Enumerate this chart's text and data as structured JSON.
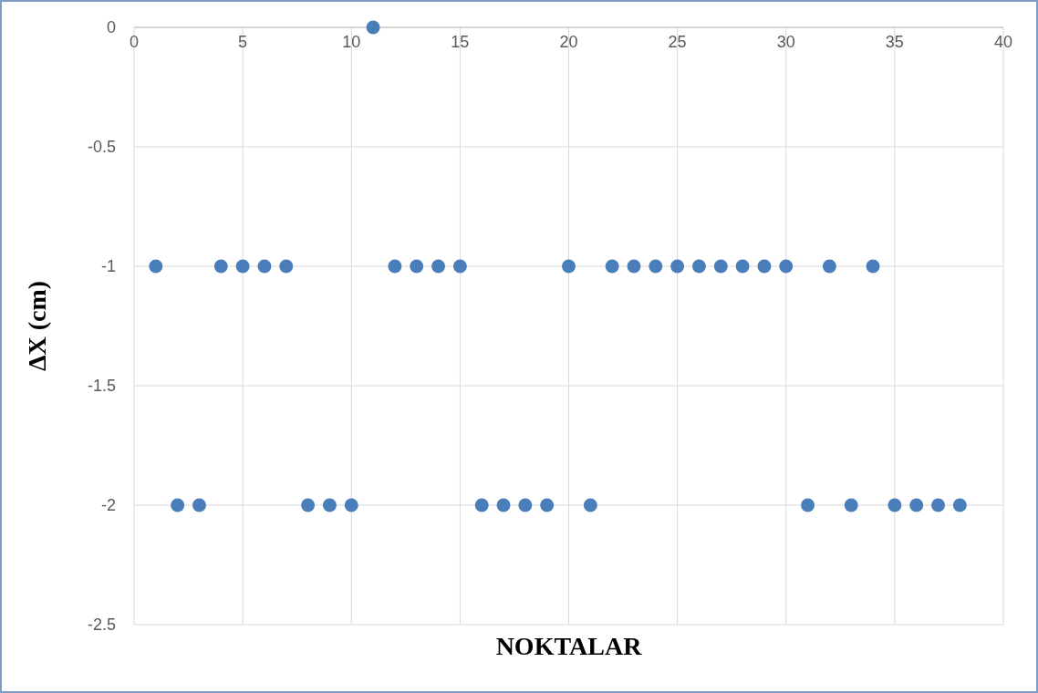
{
  "chart_data": {
    "type": "scatter",
    "xlabel": "NOKTALAR",
    "ylabel": "ΔX (cm)",
    "x": [
      1,
      2,
      3,
      4,
      5,
      6,
      7,
      8,
      9,
      10,
      11,
      12,
      13,
      14,
      15,
      16,
      17,
      18,
      19,
      20,
      21,
      22,
      23,
      24,
      25,
      26,
      27,
      28,
      29,
      30,
      31,
      32,
      33,
      34,
      35,
      36,
      37,
      38
    ],
    "series": [
      {
        "color": "#4a7ebb",
        "values": [
          -1,
          -2,
          -2,
          -1,
          -1,
          -1,
          -1,
          -2,
          -2,
          -2,
          0,
          -1,
          -1,
          -1,
          -1,
          -2,
          -2,
          -2,
          -2,
          -1,
          -2,
          -1,
          -1,
          -1,
          -1,
          -1,
          -1,
          -1,
          -1,
          -1,
          -2,
          -1,
          -2,
          -1,
          -2,
          -2,
          -2,
          -2
        ]
      }
    ],
    "xlim": [
      0,
      40
    ],
    "xticks": [
      0,
      5,
      10,
      15,
      20,
      25,
      30,
      35,
      40
    ],
    "ylim": [
      -2.5,
      0
    ],
    "yticks": [
      0,
      -0.5,
      -1,
      -1.5,
      -2,
      -2.5
    ],
    "grid": true,
    "marker": "circle"
  }
}
